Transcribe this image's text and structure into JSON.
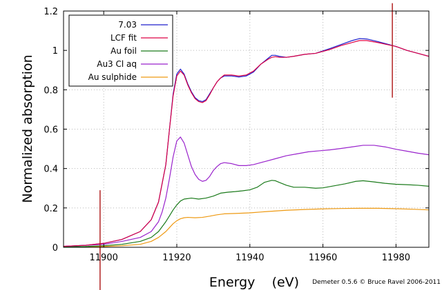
{
  "chart_data": {
    "type": "line",
    "xlabel": "Energy    (eV)",
    "ylabel": "Normalized absorption",
    "xlim": [
      11889,
      11989
    ],
    "ylim": [
      0,
      1.2
    ],
    "x_ticks": [
      11900,
      11920,
      11940,
      11960,
      11980
    ],
    "y_ticks": [
      0,
      0.2,
      0.4,
      0.6,
      0.8,
      1,
      1.2
    ],
    "y_tick_labels": [
      "0",
      "0.2",
      "0.4",
      "0.6",
      "0.8",
      "1",
      "1.2"
    ],
    "grid": true,
    "legend_position": "top-left",
    "credit": "Demeter 0.5.6 © Bruce Ravel 2006-2011",
    "markers": [
      {
        "x": 11899,
        "y_range": [
          -0.22,
          0.29
        ],
        "color": "#b22222"
      },
      {
        "x": 11979,
        "y_range": [
          0.76,
          1.24
        ],
        "color": "#b22222"
      }
    ],
    "series": [
      {
        "name": "7.03",
        "color": "#1f1fcc",
        "x": [
          11889,
          11895,
          11900,
          11905,
          11910,
          11913,
          11915,
          11917,
          11918,
          11919,
          11920,
          11921,
          11922,
          11923,
          11924,
          11925,
          11926,
          11927,
          11928,
          11929,
          11930,
          11931,
          11932,
          11933,
          11935,
          11937,
          11939,
          11941,
          11943,
          11945,
          11946,
          11947,
          11948,
          11950,
          11952,
          11955,
          11958,
          11962,
          11965,
          11968,
          11970,
          11972,
          11975,
          11978,
          11980,
          11983,
          11986,
          11989
        ],
        "y": [
          0.005,
          0.01,
          0.02,
          0.04,
          0.08,
          0.14,
          0.23,
          0.42,
          0.6,
          0.78,
          0.88,
          0.905,
          0.88,
          0.83,
          0.79,
          0.76,
          0.745,
          0.74,
          0.75,
          0.78,
          0.81,
          0.84,
          0.86,
          0.87,
          0.87,
          0.865,
          0.87,
          0.89,
          0.93,
          0.96,
          0.975,
          0.975,
          0.97,
          0.965,
          0.97,
          0.98,
          0.985,
          1.01,
          1.03,
          1.05,
          1.06,
          1.058,
          1.045,
          1.03,
          1.02,
          1.0,
          0.985,
          0.97
        ]
      },
      {
        "name": "LCF fit",
        "color": "#dd0044",
        "x": [
          11889,
          11895,
          11900,
          11905,
          11910,
          11913,
          11915,
          11917,
          11918,
          11919,
          11920,
          11921,
          11922,
          11923,
          11924,
          11925,
          11926,
          11927,
          11928,
          11929,
          11930,
          11931,
          11932,
          11933,
          11935,
          11937,
          11939,
          11941,
          11943,
          11945,
          11946,
          11947,
          11948,
          11950,
          11952,
          11955,
          11958,
          11962,
          11965,
          11968,
          11970,
          11972,
          11975,
          11978,
          11980,
          11983,
          11986,
          11989
        ],
        "y": [
          0.005,
          0.01,
          0.02,
          0.04,
          0.08,
          0.14,
          0.23,
          0.42,
          0.6,
          0.77,
          0.87,
          0.895,
          0.875,
          0.825,
          0.785,
          0.755,
          0.74,
          0.735,
          0.745,
          0.775,
          0.81,
          0.84,
          0.86,
          0.875,
          0.875,
          0.87,
          0.875,
          0.895,
          0.93,
          0.955,
          0.965,
          0.968,
          0.965,
          0.965,
          0.97,
          0.98,
          0.985,
          1.005,
          1.025,
          1.04,
          1.05,
          1.05,
          1.04,
          1.028,
          1.02,
          1.0,
          0.985,
          0.97
        ]
      },
      {
        "name": "Au foil",
        "color": "#1a7a1a",
        "x": [
          11889,
          11895,
          11900,
          11905,
          11910,
          11913,
          11915,
          11917,
          11918,
          11919,
          11920,
          11921,
          11922,
          11924,
          11926,
          11928,
          11930,
          11932,
          11934,
          11936,
          11938,
          11940,
          11942,
          11944,
          11946,
          11947,
          11948,
          11950,
          11952,
          11955,
          11958,
          11960,
          11963,
          11966,
          11969,
          11971,
          11974,
          11977,
          11980,
          11983,
          11986,
          11989
        ],
        "y": [
          0.002,
          0.004,
          0.008,
          0.015,
          0.03,
          0.05,
          0.08,
          0.13,
          0.16,
          0.19,
          0.215,
          0.235,
          0.245,
          0.25,
          0.245,
          0.25,
          0.26,
          0.275,
          0.28,
          0.283,
          0.287,
          0.292,
          0.305,
          0.33,
          0.34,
          0.338,
          0.33,
          0.315,
          0.305,
          0.305,
          0.3,
          0.302,
          0.312,
          0.322,
          0.335,
          0.338,
          0.332,
          0.325,
          0.32,
          0.318,
          0.315,
          0.31
        ]
      },
      {
        "name": "Au3 Cl aq",
        "color": "#9922cc",
        "x": [
          11889,
          11895,
          11900,
          11905,
          11910,
          11913,
          11915,
          11916,
          11917,
          11918,
          11919,
          11920,
          11921,
          11922,
          11923,
          11924,
          11925,
          11926,
          11927,
          11928,
          11929,
          11930,
          11931,
          11932,
          11933,
          11935,
          11937,
          11939,
          11941,
          11944,
          11947,
          11950,
          11953,
          11956,
          11959,
          11962,
          11965,
          11968,
          11971,
          11974,
          11977,
          11980,
          11983,
          11986,
          11989
        ],
        "y": [
          0.005,
          0.01,
          0.015,
          0.03,
          0.05,
          0.08,
          0.13,
          0.18,
          0.25,
          0.35,
          0.46,
          0.54,
          0.56,
          0.53,
          0.47,
          0.41,
          0.37,
          0.345,
          0.335,
          0.34,
          0.36,
          0.39,
          0.41,
          0.425,
          0.43,
          0.425,
          0.415,
          0.415,
          0.42,
          0.435,
          0.45,
          0.465,
          0.475,
          0.485,
          0.49,
          0.495,
          0.502,
          0.51,
          0.518,
          0.518,
          0.51,
          0.498,
          0.488,
          0.478,
          0.47
        ]
      },
      {
        "name": "Au sulphide",
        "color": "#ee9911",
        "x": [
          11889,
          11895,
          11900,
          11905,
          11910,
          11913,
          11915,
          11917,
          11918,
          11919,
          11920,
          11921,
          11922,
          11923,
          11925,
          11927,
          11929,
          11931,
          11933,
          11936,
          11940,
          11945,
          11950,
          11955,
          11960,
          11965,
          11970,
          11975,
          11980,
          11985,
          11989
        ],
        "y": [
          0.001,
          0.002,
          0.004,
          0.008,
          0.015,
          0.03,
          0.05,
          0.08,
          0.1,
          0.12,
          0.135,
          0.145,
          0.15,
          0.152,
          0.15,
          0.152,
          0.158,
          0.165,
          0.17,
          0.172,
          0.175,
          0.182,
          0.188,
          0.192,
          0.195,
          0.197,
          0.198,
          0.198,
          0.196,
          0.193,
          0.19
        ]
      }
    ]
  }
}
